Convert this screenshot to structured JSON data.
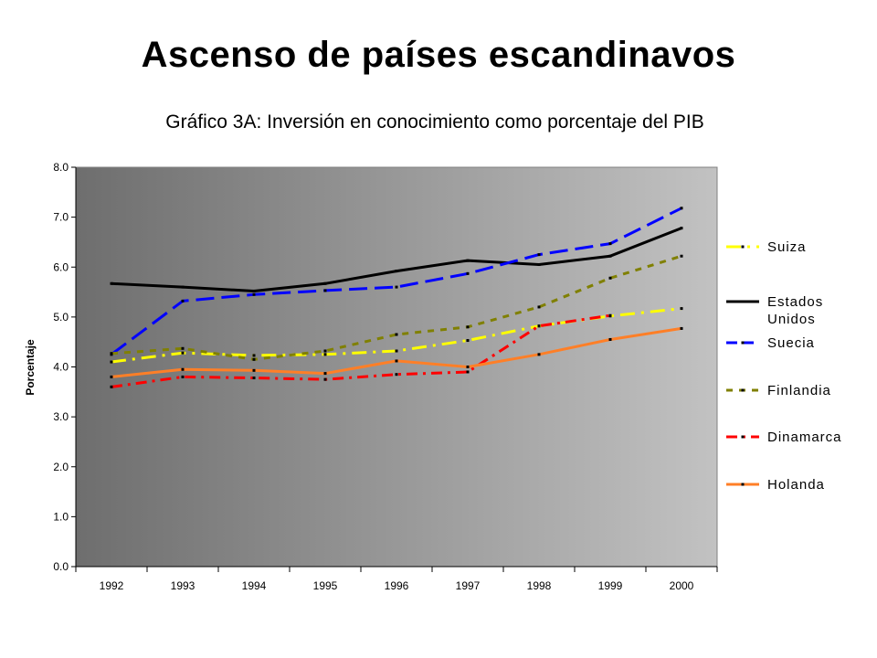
{
  "slide": {
    "title": "Ascenso de países escandinavos"
  },
  "chart_data": {
    "type": "line",
    "title": "Gráfico 3A: Inversión en conocimiento como porcentaje del PIB",
    "xlabel": "",
    "ylabel": "Porcentaje",
    "categories": [
      "1992",
      "1993",
      "1994",
      "1995",
      "1996",
      "1997",
      "1998",
      "1999",
      "2000"
    ],
    "ylim": [
      0,
      8
    ],
    "y_ticks": [
      "0.0",
      "1.0",
      "2.0",
      "3.0",
      "4.0",
      "5.0",
      "6.0",
      "7.0",
      "8.0"
    ],
    "legend_position": "right",
    "plot_background": "gradient-gray",
    "series": [
      {
        "name": "Suiza",
        "color": "#ffff00",
        "dash": "long-dash-dot",
        "values": [
          4.1,
          4.28,
          4.23,
          4.25,
          4.32,
          4.53,
          4.82,
          5.02,
          5.17
        ]
      },
      {
        "name": "Estados Unidos",
        "name_lines": [
          "Estados",
          "Unidos"
        ],
        "color": "#000000",
        "dash": "solid",
        "values": [
          5.67,
          5.6,
          5.52,
          5.67,
          5.92,
          6.13,
          6.05,
          6.22,
          6.78
        ]
      },
      {
        "name": "Suecia",
        "color": "#0000ff",
        "dash": "long-dash",
        "values": [
          4.25,
          5.32,
          5.45,
          5.53,
          5.6,
          5.87,
          6.25,
          6.47,
          7.18
        ]
      },
      {
        "name": "Finlandia",
        "color": "#808000",
        "dash": "dash",
        "values": [
          4.27,
          4.37,
          4.15,
          4.32,
          4.65,
          4.8,
          5.2,
          5.78,
          6.22
        ]
      },
      {
        "name": "Dinamarca",
        "color": "#ff0000",
        "dash": "dash-dot",
        "values": [
          3.6,
          3.8,
          3.78,
          3.75,
          3.85,
          3.9,
          4.82,
          5.03,
          null
        ]
      },
      {
        "name": "Holanda",
        "color": "#ff7f27",
        "dash": "solid",
        "values": [
          3.8,
          3.95,
          3.93,
          3.87,
          4.12,
          4.0,
          4.25,
          4.55,
          4.77
        ]
      }
    ]
  }
}
